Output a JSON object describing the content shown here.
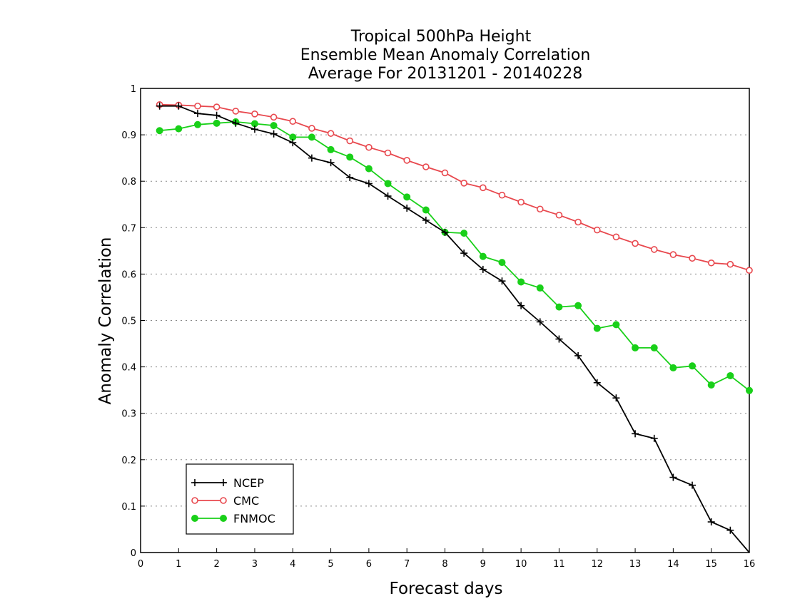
{
  "chart_data": {
    "type": "line",
    "title_lines": [
      "Tropical 500hPa Height",
      "Ensemble Mean Anomaly Correlation",
      "Average For 20131201 - 20140228"
    ],
    "xlabel": "Forecast days",
    "ylabel": "Anomaly Correlation",
    "xlim": [
      0,
      16
    ],
    "ylim": [
      0,
      1
    ],
    "x_ticks": [
      "0",
      "1",
      "2",
      "3",
      "4",
      "5",
      "6",
      "7",
      "8",
      "9",
      "10",
      "11",
      "12",
      "13",
      "14",
      "15",
      "16"
    ],
    "y_ticks": [
      "0",
      "0.1",
      "0.2",
      "0.3",
      "0.4",
      "0.5",
      "0.6",
      "0.7",
      "0.8",
      "0.9",
      "1"
    ],
    "grid": "horizontal dotted",
    "legend_position": "bottom-left",
    "x": [
      0.5,
      1,
      1.5,
      2,
      2.5,
      3,
      3.5,
      4,
      4.5,
      5,
      5.5,
      6,
      6.5,
      7,
      7.5,
      8,
      8.5,
      9,
      9.5,
      10,
      10.5,
      11,
      11.5,
      12,
      12.5,
      13,
      13.5,
      14,
      14.5,
      15,
      15.5,
      16
    ],
    "series": [
      {
        "name": "NCEP",
        "color": "#000000",
        "marker": "plus",
        "values": [
          0.962,
          0.962,
          0.946,
          0.942,
          0.925,
          0.912,
          0.902,
          0.883,
          0.85,
          0.84,
          0.808,
          0.795,
          0.768,
          0.742,
          0.716,
          0.69,
          0.645,
          0.61,
          0.585,
          0.532,
          0.497,
          0.46,
          0.424,
          0.366,
          0.333,
          0.256,
          0.246,
          0.162,
          0.145,
          0.066,
          0.048,
          0
        ]
      },
      {
        "name": "CMC",
        "color": "#e8484e",
        "marker": "open-circle",
        "values": [
          0.965,
          0.964,
          0.962,
          0.96,
          0.951,
          0.945,
          0.938,
          0.929,
          0.914,
          0.903,
          0.887,
          0.873,
          0.861,
          0.845,
          0.831,
          0.818,
          0.796,
          0.786,
          0.77,
          0.755,
          0.74,
          0.727,
          0.712,
          0.695,
          0.68,
          0.666,
          0.653,
          0.642,
          0.634,
          0.624,
          0.621,
          0.608
        ]
      },
      {
        "name": "FNMOC",
        "color": "#19d019",
        "marker": "filled-circle",
        "values": [
          0.909,
          0.913,
          0.922,
          0.925,
          0.928,
          0.924,
          0.92,
          0.895,
          0.895,
          0.868,
          0.852,
          0.827,
          0.795,
          0.766,
          0.738,
          0.69,
          0.688,
          0.638,
          0.625,
          0.583,
          0.57,
          0.529,
          0.532,
          0.483,
          0.491,
          0.441,
          0.441,
          0.398,
          0.402,
          0.361,
          0.381,
          0.349
        ]
      }
    ]
  }
}
